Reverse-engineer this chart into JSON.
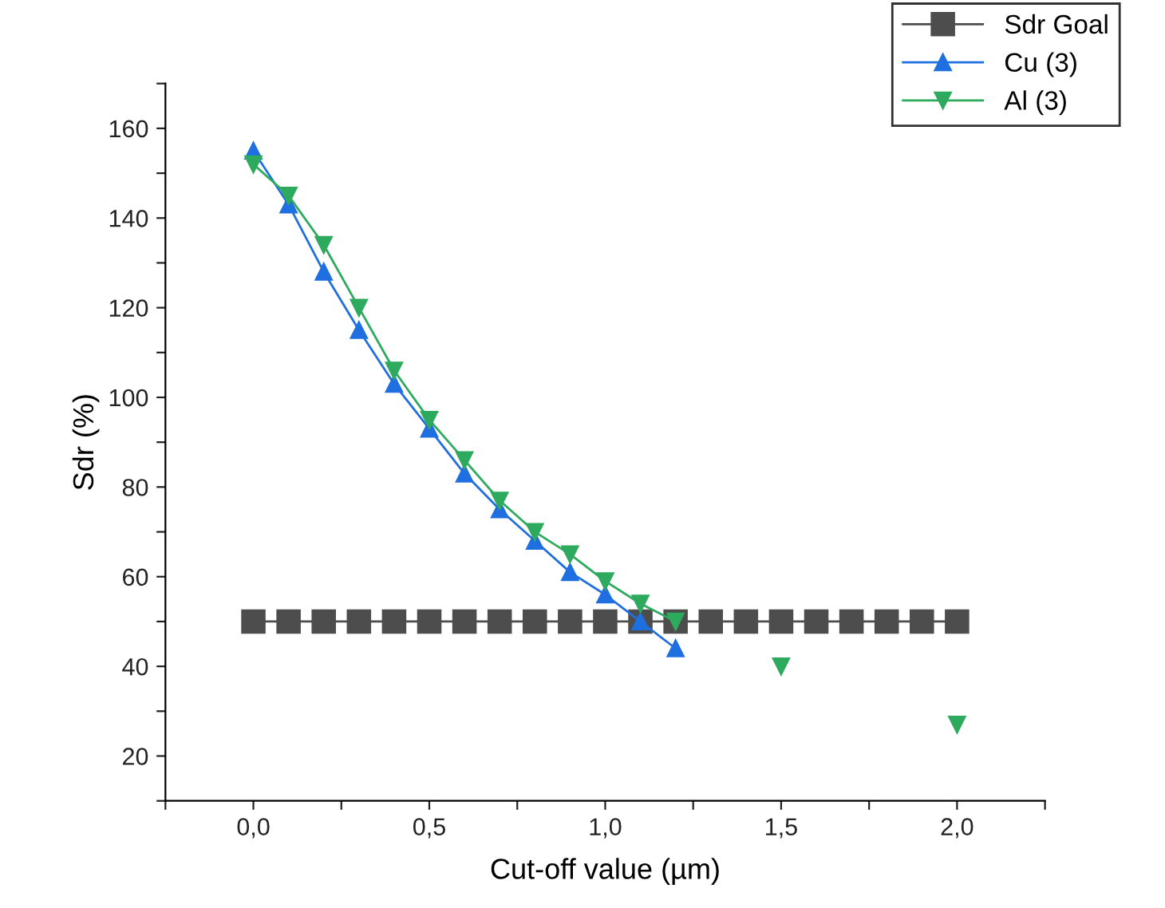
{
  "chart_data": {
    "type": "line",
    "xlabel": "Cut-off value (µm)",
    "ylabel": "Sdr (%)",
    "xlim": [
      -0.25,
      2.25
    ],
    "ylim": [
      10,
      170
    ],
    "xticks": [
      {
        "value": -0.25,
        "label": null
      },
      {
        "value": 0,
        "label": "0,0"
      },
      {
        "value": 0.25,
        "label": null
      },
      {
        "value": 0.5,
        "label": "0,5"
      },
      {
        "value": 0.75,
        "label": null
      },
      {
        "value": 1.0,
        "label": "1,0"
      },
      {
        "value": 1.25,
        "label": null
      },
      {
        "value": 1.5,
        "label": "1,5"
      },
      {
        "value": 1.75,
        "label": null
      },
      {
        "value": 2.0,
        "label": "2,0"
      },
      {
        "value": 2.25,
        "label": null
      }
    ],
    "yticks": [
      {
        "value": 10,
        "label": null
      },
      20,
      {
        "value": 30,
        "label": null
      },
      40,
      {
        "value": 50,
        "label": null
      },
      60,
      {
        "value": 70,
        "label": null
      },
      80,
      {
        "value": 90,
        "label": null
      },
      100,
      {
        "value": 110,
        "label": null
      },
      120,
      {
        "value": 130,
        "label": null
      },
      140,
      {
        "value": 150,
        "label": null
      },
      160,
      {
        "value": 170,
        "label": null
      }
    ],
    "grid": false,
    "legend": "top right",
    "line_style": "solid",
    "series": [
      {
        "name": "Sdr Goal",
        "color": "#4d4d4d",
        "marker": "square",
        "x": [
          0,
          0.1,
          0.2,
          0.3,
          0.4,
          0.5,
          0.6,
          0.7,
          0.8,
          0.9,
          1.0,
          1.1,
          1.2,
          1.3,
          1.4,
          1.5,
          1.6,
          1.7,
          1.8,
          1.9,
          2.0
        ],
        "values": [
          50,
          50,
          50,
          50,
          50,
          50,
          50,
          50,
          50,
          50,
          50,
          50,
          50,
          50,
          50,
          50,
          50,
          50,
          50,
          50,
          50
        ]
      },
      {
        "name": "Cu (3)",
        "color": "#1f6fe0",
        "marker": "triangle",
        "x": [
          0,
          0.1,
          0.2,
          0.3,
          0.4,
          0.5,
          0.6,
          0.7,
          0.8,
          0.9,
          1.0,
          1.1,
          1.2
        ],
        "values": [
          155,
          143,
          128,
          115,
          103,
          93,
          83,
          75,
          68,
          61,
          56,
          50,
          44
        ]
      },
      {
        "name": "Al (3)",
        "color": "#2eaa5e",
        "marker": "triangle_down",
        "x": [
          0,
          0.1,
          0.2,
          0.3,
          0.4,
          0.5,
          0.6,
          0.7,
          0.8,
          0.9,
          1.0,
          1.1,
          1.2,
          1.3,
          1.5,
          1.6,
          2.0
        ],
        "values": [
          152,
          145,
          134,
          120,
          106,
          95,
          86,
          77,
          70,
          65,
          59,
          54,
          50,
          null,
          40,
          null,
          27
        ]
      }
    ]
  }
}
